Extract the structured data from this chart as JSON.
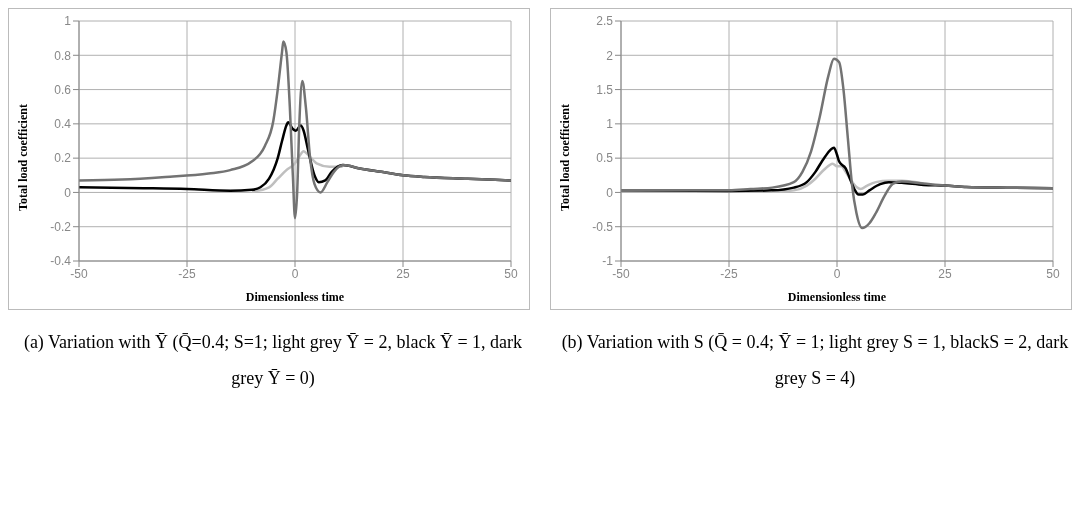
{
  "chart_data": [
    {
      "type": "line",
      "xlabel": "Dimensionless time",
      "ylabel": "Total load coefficient",
      "xlim": [
        -50,
        50
      ],
      "xticks": [
        -50,
        -25,
        0,
        25,
        50
      ],
      "ylim": [
        -0.4,
        1
      ],
      "yticks": [
        -0.4,
        -0.2,
        0,
        0.2,
        0.4,
        0.6,
        0.8,
        1
      ],
      "grid": true,
      "legend": false,
      "marker": "none",
      "line_style": "solid",
      "annotations": [
        "(a) Variation with Ȳ (Q̄=0.4; S=1; light grey Ȳ = 2, black Ȳ = 1, dark grey Ȳ = 0)"
      ],
      "series": [
        {
          "color": "#bfbfbf",
          "x": [
            -10,
            -6,
            -4,
            -2,
            0,
            1,
            2,
            3,
            5,
            8,
            11
          ],
          "values": [
            0.005,
            0.03,
            0.08,
            0.13,
            0.17,
            0.21,
            0.24,
            0.22,
            0.17,
            0.15,
            0.15
          ]
        },
        {
          "color": "#000000",
          "x": [
            -50,
            -35,
            -25,
            -15,
            -10,
            -8,
            -6,
            -4,
            -3,
            -2,
            -1.6,
            -0.5,
            0.2,
            1.3,
            2,
            3,
            4.5,
            5.5,
            7,
            8.5,
            11,
            15,
            20,
            25,
            30,
            40,
            50
          ],
          "values": [
            0.03,
            0.025,
            0.02,
            0.01,
            0.015,
            0.03,
            0.08,
            0.2,
            0.3,
            0.39,
            0.41,
            0.37,
            0.36,
            0.39,
            0.36,
            0.25,
            0.1,
            0.06,
            0.07,
            0.12,
            0.16,
            0.14,
            0.12,
            0.1,
            0.09,
            0.08,
            0.07
          ]
        },
        {
          "color": "#737373",
          "x": [
            -50,
            -40,
            -30,
            -20,
            -15,
            -10,
            -7,
            -5,
            -4,
            -3,
            -2.7,
            -2,
            -1.2,
            -0.5,
            0,
            0.5,
            1,
            1.7,
            2.5,
            3.5,
            4.5,
            5.9,
            7.5,
            9,
            11.2,
            15,
            20,
            25,
            30,
            40,
            50
          ],
          "values": [
            0.07,
            0.075,
            0.09,
            0.11,
            0.13,
            0.18,
            0.27,
            0.42,
            0.6,
            0.82,
            0.88,
            0.82,
            0.5,
            0.1,
            -0.15,
            0,
            0.4,
            0.65,
            0.5,
            0.2,
            0.05,
            0,
            0.06,
            0.12,
            0.16,
            0.14,
            0.12,
            0.1,
            0.09,
            0.08,
            0.07
          ]
        }
      ]
    },
    {
      "type": "line",
      "xlabel": "Dimensionless time",
      "ylabel": "Total load coefficient",
      "xlim": [
        -50,
        50
      ],
      "xticks": [
        -50,
        -25,
        0,
        25,
        50
      ],
      "ylim": [
        -1,
        2.5
      ],
      "yticks": [
        -1,
        -0.5,
        0,
        0.5,
        1,
        1.5,
        2,
        2.5
      ],
      "grid": true,
      "legend": false,
      "marker": "none",
      "line_style": "solid",
      "annotations": [
        "(b) Variation with S (Q̄ = 0.4;  Ȳ = 1; light grey  S = 1, blackS =  2, dark grey S = 4)"
      ],
      "series": [
        {
          "color": "#bfbfbf",
          "x": [
            -15,
            -10,
            -7,
            -5,
            -3,
            -1,
            0,
            1,
            2,
            3,
            4.5,
            5.5,
            7,
            9,
            12,
            15,
            20
          ],
          "values": [
            0.01,
            0.03,
            0.1,
            0.2,
            0.33,
            0.42,
            0.38,
            0.38,
            0.3,
            0.2,
            0.08,
            0.05,
            0.1,
            0.15,
            0.17,
            0.17,
            0.13
          ]
        },
        {
          "color": "#000000",
          "x": [
            -50,
            -25,
            -15,
            -10,
            -7,
            -5,
            -3,
            -0.7,
            0,
            0.5,
            2,
            3,
            4,
            5,
            6,
            7.5,
            10,
            12,
            15,
            20,
            25,
            30,
            40,
            50
          ],
          "values": [
            0.03,
            0.02,
            0.03,
            0.07,
            0.15,
            0.3,
            0.5,
            0.65,
            0.55,
            0.45,
            0.35,
            0.2,
            0.05,
            -0.03,
            -0.03,
            0.03,
            0.12,
            0.15,
            0.14,
            0.11,
            0.1,
            0.08,
            0.07,
            0.06
          ]
        },
        {
          "color": "#737373",
          "x": [
            -50,
            -25,
            -20,
            -15,
            -10,
            -8,
            -6,
            -4,
            -2,
            -0.7,
            0.5,
            1.5,
            2.5,
            3.5,
            4.5,
            5.8,
            7.5,
            9,
            11,
            13,
            15,
            20,
            25,
            30,
            40,
            50
          ],
          "values": [
            0.03,
            0.03,
            0.05,
            0.07,
            0.15,
            0.3,
            0.6,
            1.1,
            1.7,
            1.95,
            1.9,
            1.5,
            0.8,
            0.1,
            -0.3,
            -0.52,
            -0.45,
            -0.3,
            -0.05,
            0.13,
            0.16,
            0.13,
            0.1,
            0.08,
            0.07,
            0.06
          ]
        }
      ]
    }
  ]
}
